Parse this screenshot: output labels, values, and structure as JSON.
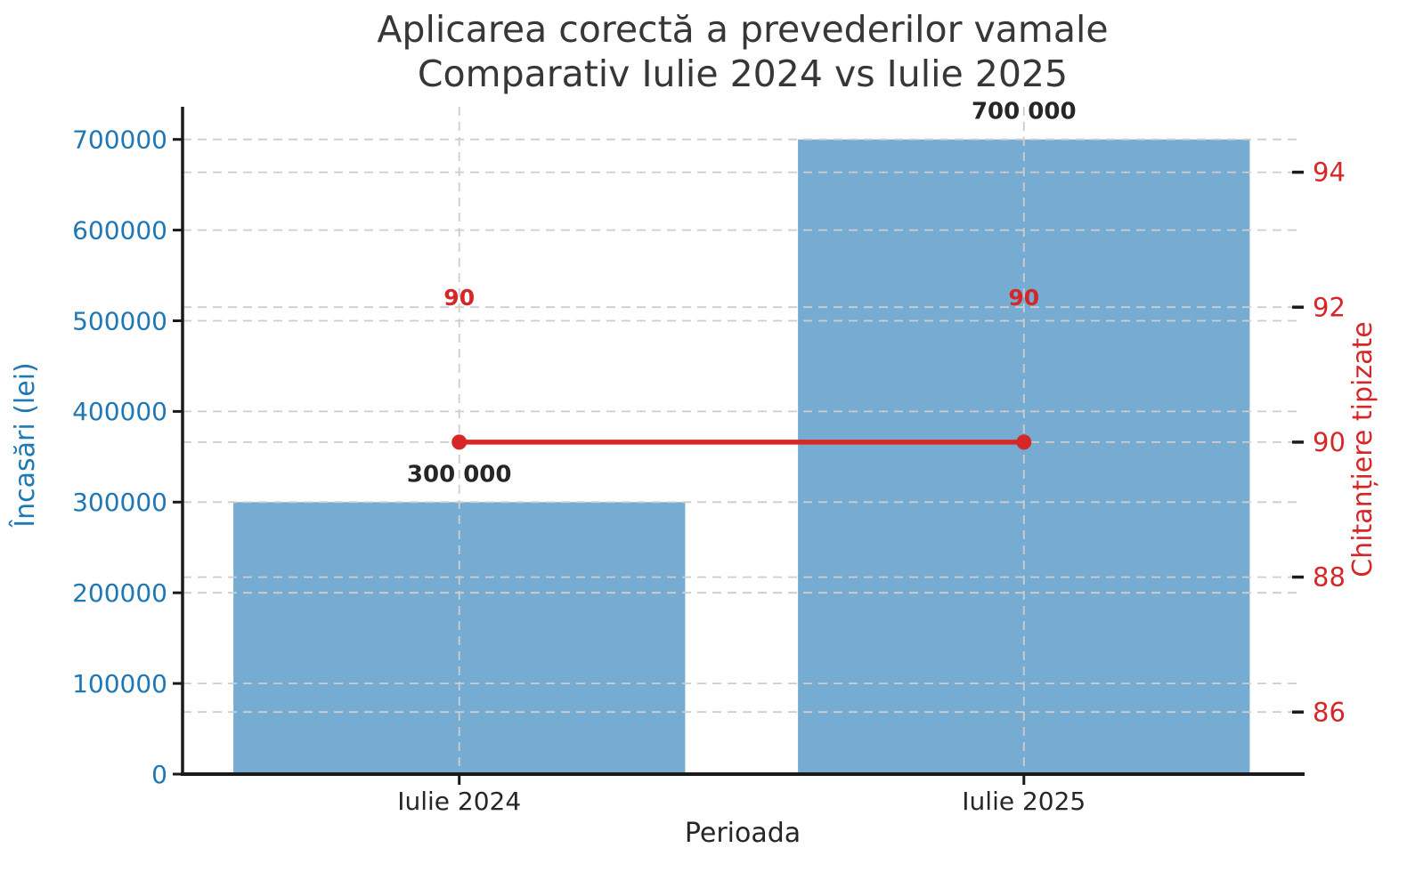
{
  "title": {
    "line1": "Aplicarea corectă a prevederilor vamale",
    "line2": "Comparativ Iulie 2024 vs Iulie 2025"
  },
  "chart_data": {
    "type": "combo_bar_line",
    "title_lines": [
      "Aplicarea corectă a prevederilor vamale",
      "Comparativ Iulie 2024 vs Iulie 2025"
    ],
    "categories": [
      "Iulie 2024",
      "Iulie 2025"
    ],
    "xlabel": "Perioada",
    "series": [
      {
        "name": "Încasări (lei)",
        "type": "bar",
        "axis": "left",
        "values": [
          300000,
          700000
        ],
        "value_labels": [
          "300 000",
          "700 000"
        ],
        "color": "#76acd1"
      },
      {
        "name": "Chitanțiere tipizate",
        "type": "line",
        "axis": "right",
        "values": [
          90,
          90
        ],
        "value_labels": [
          "90",
          "90"
        ],
        "color": "#d62728"
      }
    ],
    "left_axis": {
      "label": "Încasări (lei)",
      "ticks": [
        0,
        100000,
        200000,
        300000,
        400000,
        500000,
        600000,
        700000
      ],
      "range": [
        0,
        736000
      ],
      "color": "#1f77b4"
    },
    "right_axis": {
      "label": "Chitanțiere tipizate",
      "ticks": [
        86,
        88,
        90,
        92,
        94
      ],
      "range": [
        85.08,
        94.97
      ],
      "color": "#d62728"
    },
    "x_range": [
      -0.49,
      1.494
    ],
    "bar_width": 0.8,
    "grid": "dashed gray: horizontal at both axes ticks, vertical at category centers",
    "legend": "none"
  },
  "colors": {
    "bar_fill": "#76acd1",
    "line_red": "#d62728",
    "left_axis_blue": "#1f77b4",
    "title_text": "#373737",
    "tick_text_dark": "#262626",
    "spine": "#1a1a1a",
    "gridline": "#cdcdcd"
  }
}
